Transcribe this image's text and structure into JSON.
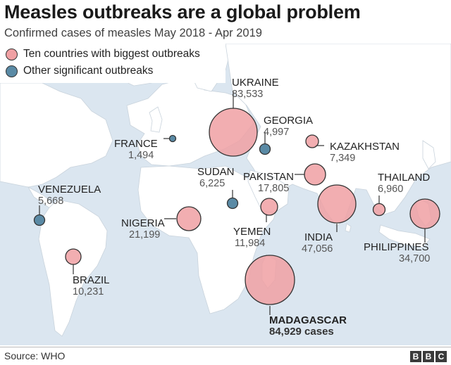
{
  "title": "Measles outbreaks are a global problem",
  "subtitle": "Confirmed cases of measles May 2018 - Apr 2019",
  "legend": {
    "items": [
      {
        "label": "Ten countries with biggest outbreaks",
        "color": "#f0a0a3"
      },
      {
        "label": "Other significant outbreaks",
        "color": "#5a8aa5"
      }
    ]
  },
  "colors": {
    "ocean": "#dbe6f0",
    "land": "#ffffff",
    "big_outbreak": "#f0a0a3",
    "other_outbreak": "#5a8aa5"
  },
  "countries": [
    {
      "key": "ukraine",
      "name": "UKRAINE",
      "cases": "83,533",
      "cases_num": 83533,
      "group": "big"
    },
    {
      "key": "georgia",
      "name": "GEORGIA",
      "cases": "4,997",
      "cases_num": 4997,
      "group": "other"
    },
    {
      "key": "kazakhstan",
      "name": "KAZAKHSTAN",
      "cases": "7,349",
      "cases_num": 7349,
      "group": "big"
    },
    {
      "key": "france",
      "name": "FRANCE",
      "cases": "1,494",
      "cases_num": 1494,
      "group": "other"
    },
    {
      "key": "sudan",
      "name": "SUDAN",
      "cases": "6,225",
      "cases_num": 6225,
      "group": "other"
    },
    {
      "key": "pakistan",
      "name": "PAKISTAN",
      "cases": "17,805",
      "cases_num": 17805,
      "group": "big"
    },
    {
      "key": "thailand",
      "name": "THAILAND",
      "cases": "6,960",
      "cases_num": 6960,
      "group": "big"
    },
    {
      "key": "venezuela",
      "name": "VENEZUELA",
      "cases": "5,668",
      "cases_num": 5668,
      "group": "other"
    },
    {
      "key": "nigeria",
      "name": "NIGERIA",
      "cases": "21,199",
      "cases_num": 21199,
      "group": "big"
    },
    {
      "key": "yemen",
      "name": "YEMEN",
      "cases": "11,984",
      "cases_num": 11984,
      "group": "big"
    },
    {
      "key": "india",
      "name": "INDIA",
      "cases": "47,056",
      "cases_num": 47056,
      "group": "big"
    },
    {
      "key": "philippines",
      "name": "PHILIPPINES",
      "cases": "34,700",
      "cases_num": 34700,
      "group": "big"
    },
    {
      "key": "brazil",
      "name": "BRAZIL",
      "cases": "10,231",
      "cases_num": 10231,
      "group": "big"
    },
    {
      "key": "madagascar",
      "name": "MADAGASCAR",
      "cases": "84,929 cases",
      "cases_num": 84929,
      "group": "big"
    }
  ],
  "footer": {
    "source": "Source: WHO",
    "logo_letters": [
      "B",
      "B",
      "C"
    ]
  }
}
